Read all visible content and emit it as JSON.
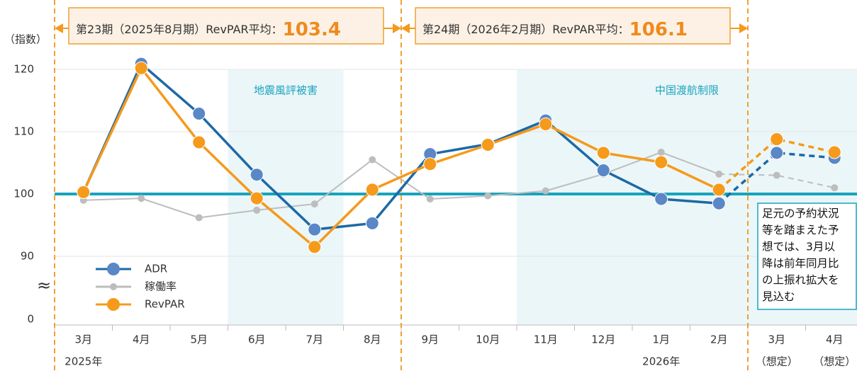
{
  "chart_data": {
    "type": "line",
    "y_axis_label": "（指数）",
    "axis_break_symbol": "≈",
    "categories": [
      "3月",
      "4月",
      "5月",
      "6月",
      "7月",
      "8月",
      "9月",
      "10月",
      "11月",
      "12月",
      "1月",
      "2月",
      "3月",
      "4月"
    ],
    "sublabels": [
      "2025年",
      null,
      null,
      null,
      null,
      null,
      null,
      null,
      null,
      null,
      "2026年",
      null,
      "（想定）",
      "（想定）"
    ],
    "series": [
      {
        "name": "ADR",
        "color": "#1d69a6",
        "marker_color": "#5a87c6",
        "marker_size": 9,
        "values": [
          100.3,
          120.9,
          112.9,
          103.1,
          94.3,
          95.3,
          106.4,
          108.0,
          111.8,
          103.8,
          99.2,
          98.5,
          106.6,
          105.8
        ]
      },
      {
        "name": "稼働率",
        "color": "#bdbdbd",
        "marker_color": "#bdbdbd",
        "marker_size": 5,
        "values": [
          99.0,
          99.3,
          96.2,
          97.4,
          98.4,
          105.5,
          99.2,
          99.7,
          100.5,
          103.2,
          106.7,
          103.2,
          103.0,
          101.0
        ]
      },
      {
        "name": "RevPAR",
        "color": "#f59a1b",
        "marker_color": "#f59a1b",
        "marker_size": 9,
        "values": [
          100.3,
          120.2,
          108.3,
          99.3,
          91.5,
          100.7,
          104.8,
          107.9,
          111.2,
          106.6,
          105.1,
          100.7,
          108.8,
          106.7
        ]
      }
    ],
    "projection_start": 11,
    "ylim": [
      0,
      122
    ],
    "yticks": [
      0,
      90,
      100,
      110,
      120
    ],
    "grid": true,
    "reference_line": {
      "value": 100,
      "color": "#17a3bd"
    },
    "shaded_ranges": [
      {
        "label": "地震風評被害",
        "start": 3,
        "end": 4
      },
      {
        "label": "中国渡航制限",
        "start": 8,
        "end": 13
      }
    ],
    "periods": [
      {
        "label": "第23期（2025年8月期）RevPAR平均：",
        "value": 103.4,
        "start": 0,
        "end": 5
      },
      {
        "label": "第24期（2026年2月期）RevPAR平均：",
        "value": 106.1,
        "start": 6,
        "end": 11
      }
    ],
    "note_lines": [
      "足元の予約状況",
      "等を踏まえた予",
      "想では、3月以",
      "降は前年同月比",
      "の上振れ拡大を",
      "見込む"
    ],
    "legend": "lower left"
  }
}
